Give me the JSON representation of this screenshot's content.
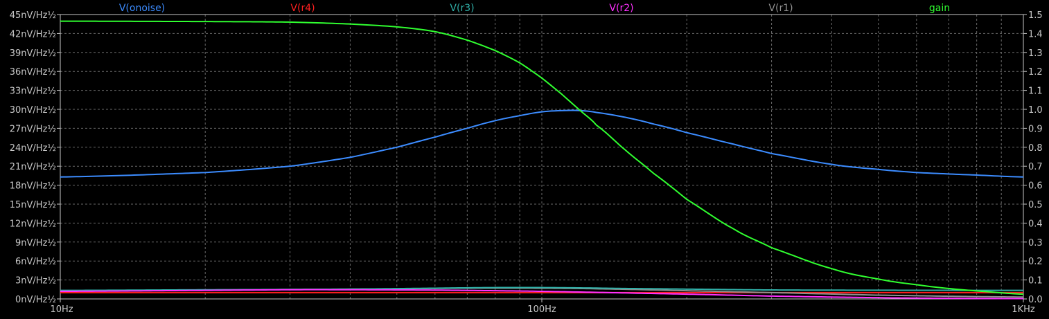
{
  "chart_data": {
    "type": "line",
    "x_scale": "log",
    "xlim": [
      10,
      1000
    ],
    "x_ticks": [
      {
        "value": 10,
        "label": "10Hz"
      },
      {
        "value": 100,
        "label": "100Hz"
      },
      {
        "value": 1000,
        "label": "1KHz"
      }
    ],
    "y_left": {
      "lim": [
        0,
        45
      ],
      "ticks": [
        {
          "value": 0,
          "label": "0nV/Hz½"
        },
        {
          "value": 3,
          "label": "3nV/Hz½"
        },
        {
          "value": 6,
          "label": "6nV/Hz½"
        },
        {
          "value": 9,
          "label": "9nV/Hz½"
        },
        {
          "value": 12,
          "label": "12nV/Hz½"
        },
        {
          "value": 15,
          "label": "15nV/Hz½"
        },
        {
          "value": 18,
          "label": "18nV/Hz½"
        },
        {
          "value": 21,
          "label": "21nV/Hz½"
        },
        {
          "value": 24,
          "label": "24nV/Hz½"
        },
        {
          "value": 27,
          "label": "27nV/Hz½"
        },
        {
          "value": 30,
          "label": "30nV/Hz½"
        },
        {
          "value": 33,
          "label": "33nV/Hz½"
        },
        {
          "value": 36,
          "label": "36nV/Hz½"
        },
        {
          "value": 39,
          "label": "39nV/Hz½"
        },
        {
          "value": 42,
          "label": "42nV/Hz½"
        },
        {
          "value": 45,
          "label": "45nV/Hz½"
        }
      ]
    },
    "y_right": {
      "lim": [
        0,
        1.5
      ],
      "ticks": [
        {
          "value": 0.0,
          "label": "0.0"
        },
        {
          "value": 0.1,
          "label": "0.1"
        },
        {
          "value": 0.2,
          "label": "0.2"
        },
        {
          "value": 0.3,
          "label": "0.3"
        },
        {
          "value": 0.4,
          "label": "0.4"
        },
        {
          "value": 0.5,
          "label": "0.5"
        },
        {
          "value": 0.6,
          "label": "0.6"
        },
        {
          "value": 0.7,
          "label": "0.7"
        },
        {
          "value": 0.8,
          "label": "0.8"
        },
        {
          "value": 0.9,
          "label": "0.9"
        },
        {
          "value": 1.0,
          "label": "1.0"
        },
        {
          "value": 1.1,
          "label": "1.1"
        },
        {
          "value": 1.2,
          "label": "1.2"
        },
        {
          "value": 1.3,
          "label": "1.3"
        },
        {
          "value": 1.4,
          "label": "1.4"
        },
        {
          "value": 1.5,
          "label": "1.5"
        }
      ]
    },
    "grid": true,
    "legend_position": "top",
    "series": [
      {
        "name": "V(onoise)",
        "axis": "left",
        "color": "#3c8cff",
        "x": [
          10,
          20,
          30,
          40,
          50,
          60,
          70,
          80,
          90,
          100,
          110,
          120,
          130,
          150,
          170,
          200,
          250,
          300,
          400,
          500,
          600,
          800,
          1000
        ],
        "y": [
          19.3,
          20.0,
          21.0,
          22.4,
          24.0,
          25.6,
          27.0,
          28.2,
          29.0,
          29.6,
          29.8,
          29.8,
          29.5,
          28.7,
          27.7,
          26.3,
          24.5,
          23.0,
          21.3,
          20.5,
          20.0,
          19.6,
          19.3
        ]
      },
      {
        "name": "V(r4)",
        "axis": "left",
        "color": "#ff2020",
        "x": [
          10,
          1000
        ],
        "y": [
          1.0,
          1.0
        ]
      },
      {
        "name": "V(r3)",
        "axis": "left",
        "color": "#30b0a8",
        "x": [
          10,
          20,
          40,
          60,
          80,
          100,
          120,
          150,
          200,
          300,
          500,
          1000
        ],
        "y": [
          1.35,
          1.45,
          1.55,
          1.7,
          1.8,
          1.8,
          1.75,
          1.65,
          1.55,
          1.42,
          1.38,
          1.35
        ]
      },
      {
        "name": "V(r2)",
        "axis": "left",
        "color": "#ff30ff",
        "x": [
          10,
          20,
          30,
          40,
          60,
          80,
          100,
          150,
          200,
          300,
          500,
          700,
          1000
        ],
        "y": [
          1.2,
          1.35,
          1.45,
          1.45,
          1.4,
          1.3,
          1.2,
          0.95,
          0.75,
          0.45,
          0.2,
          0.1,
          0.05
        ]
      },
      {
        "name": "V(r1)",
        "axis": "left",
        "color": "#909090",
        "x": [
          10,
          20,
          30,
          50,
          70,
          100,
          130,
          200,
          300,
          500,
          1000
        ],
        "y": [
          1.25,
          1.4,
          1.5,
          1.6,
          1.7,
          1.7,
          1.6,
          1.3,
          1.0,
          0.6,
          0.3
        ]
      },
      {
        "name": "gain",
        "axis": "right",
        "color": "#30ff30",
        "x": [
          10,
          20,
          30,
          40,
          50,
          60,
          70,
          80,
          90,
          100,
          110,
          120,
          130,
          150,
          170,
          200,
          250,
          300,
          400,
          500,
          600,
          700,
          800,
          1000
        ],
        "y": [
          1.465,
          1.463,
          1.46,
          1.45,
          1.435,
          1.41,
          1.365,
          1.31,
          1.245,
          1.165,
          1.08,
          0.995,
          0.915,
          0.78,
          0.665,
          0.525,
          0.37,
          0.27,
          0.16,
          0.105,
          0.075,
          0.055,
          0.042,
          0.025
        ]
      }
    ]
  }
}
